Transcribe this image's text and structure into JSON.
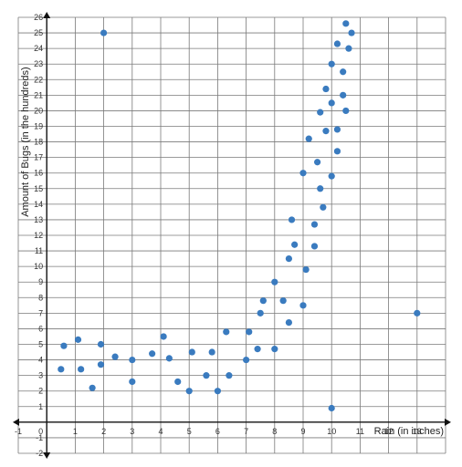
{
  "chart_data": {
    "type": "scatter",
    "title": "",
    "xlabel": "Rain (in inches)",
    "ylabel": "Amount of Bugs (in the hundreds)",
    "xlim": [
      -1,
      14
    ],
    "ylim": [
      -2,
      26
    ],
    "x_ticks": [
      -1,
      1,
      2,
      3,
      4,
      5,
      6,
      7,
      8,
      9,
      10,
      11,
      12,
      13
    ],
    "y_ticks": [
      -2,
      -1,
      1,
      2,
      3,
      4,
      5,
      6,
      7,
      8,
      9,
      10,
      11,
      12,
      13,
      14,
      15,
      16,
      17,
      18,
      19,
      20,
      21,
      22,
      23,
      24,
      25,
      26
    ],
    "origin_label": "0",
    "grid": true,
    "colors": {
      "point": "#3a7bbf",
      "grid": "#7a7a7a",
      "axis": "#111111"
    },
    "points": [
      {
        "x": 0.5,
        "y": 3.4
      },
      {
        "x": 0.6,
        "y": 4.9
      },
      {
        "x": 1.1,
        "y": 5.3
      },
      {
        "x": 1.2,
        "y": 3.4
      },
      {
        "x": 1.6,
        "y": 2.2
      },
      {
        "x": 1.9,
        "y": 3.7
      },
      {
        "x": 1.9,
        "y": 5.0
      },
      {
        "x": 2.0,
        "y": 25.0
      },
      {
        "x": 2.4,
        "y": 4.2
      },
      {
        "x": 3.0,
        "y": 4.0
      },
      {
        "x": 3.0,
        "y": 2.6
      },
      {
        "x": 3.7,
        "y": 4.4
      },
      {
        "x": 4.1,
        "y": 5.5
      },
      {
        "x": 4.3,
        "y": 4.1
      },
      {
        "x": 4.6,
        "y": 2.6
      },
      {
        "x": 5.0,
        "y": 2.0
      },
      {
        "x": 5.1,
        "y": 4.5
      },
      {
        "x": 5.6,
        "y": 3.0
      },
      {
        "x": 5.8,
        "y": 4.5
      },
      {
        "x": 6.0,
        "y": 2.0
      },
      {
        "x": 6.3,
        "y": 5.8
      },
      {
        "x": 6.4,
        "y": 3.0
      },
      {
        "x": 7.0,
        "y": 4.0
      },
      {
        "x": 7.1,
        "y": 5.8
      },
      {
        "x": 7.4,
        "y": 4.7
      },
      {
        "x": 7.5,
        "y": 7.0
      },
      {
        "x": 7.6,
        "y": 7.8
      },
      {
        "x": 8.0,
        "y": 4.7
      },
      {
        "x": 8.0,
        "y": 9.0
      },
      {
        "x": 8.3,
        "y": 7.8
      },
      {
        "x": 8.5,
        "y": 6.4
      },
      {
        "x": 8.5,
        "y": 10.5
      },
      {
        "x": 8.6,
        "y": 13.0
      },
      {
        "x": 8.7,
        "y": 11.4
      },
      {
        "x": 9.0,
        "y": 7.5
      },
      {
        "x": 9.0,
        "y": 16.0
      },
      {
        "x": 9.1,
        "y": 9.8
      },
      {
        "x": 9.2,
        "y": 18.2
      },
      {
        "x": 9.4,
        "y": 11.3
      },
      {
        "x": 9.4,
        "y": 12.7
      },
      {
        "x": 9.5,
        "y": 16.7
      },
      {
        "x": 9.6,
        "y": 15.0
      },
      {
        "x": 9.6,
        "y": 19.9
      },
      {
        "x": 9.7,
        "y": 13.8
      },
      {
        "x": 9.8,
        "y": 18.7
      },
      {
        "x": 9.8,
        "y": 21.4
      },
      {
        "x": 10.0,
        "y": 15.8
      },
      {
        "x": 10.0,
        "y": 20.5
      },
      {
        "x": 10.0,
        "y": 23.0
      },
      {
        "x": 10.0,
        "y": 0.9
      },
      {
        "x": 10.2,
        "y": 17.4
      },
      {
        "x": 10.2,
        "y": 18.8
      },
      {
        "x": 10.2,
        "y": 24.3
      },
      {
        "x": 10.4,
        "y": 22.5
      },
      {
        "x": 10.4,
        "y": 21.0
      },
      {
        "x": 10.5,
        "y": 20.0
      },
      {
        "x": 10.5,
        "y": 25.6
      },
      {
        "x": 10.6,
        "y": 24.0
      },
      {
        "x": 10.7,
        "y": 25.0
      },
      {
        "x": 13.0,
        "y": 7.0
      }
    ]
  }
}
